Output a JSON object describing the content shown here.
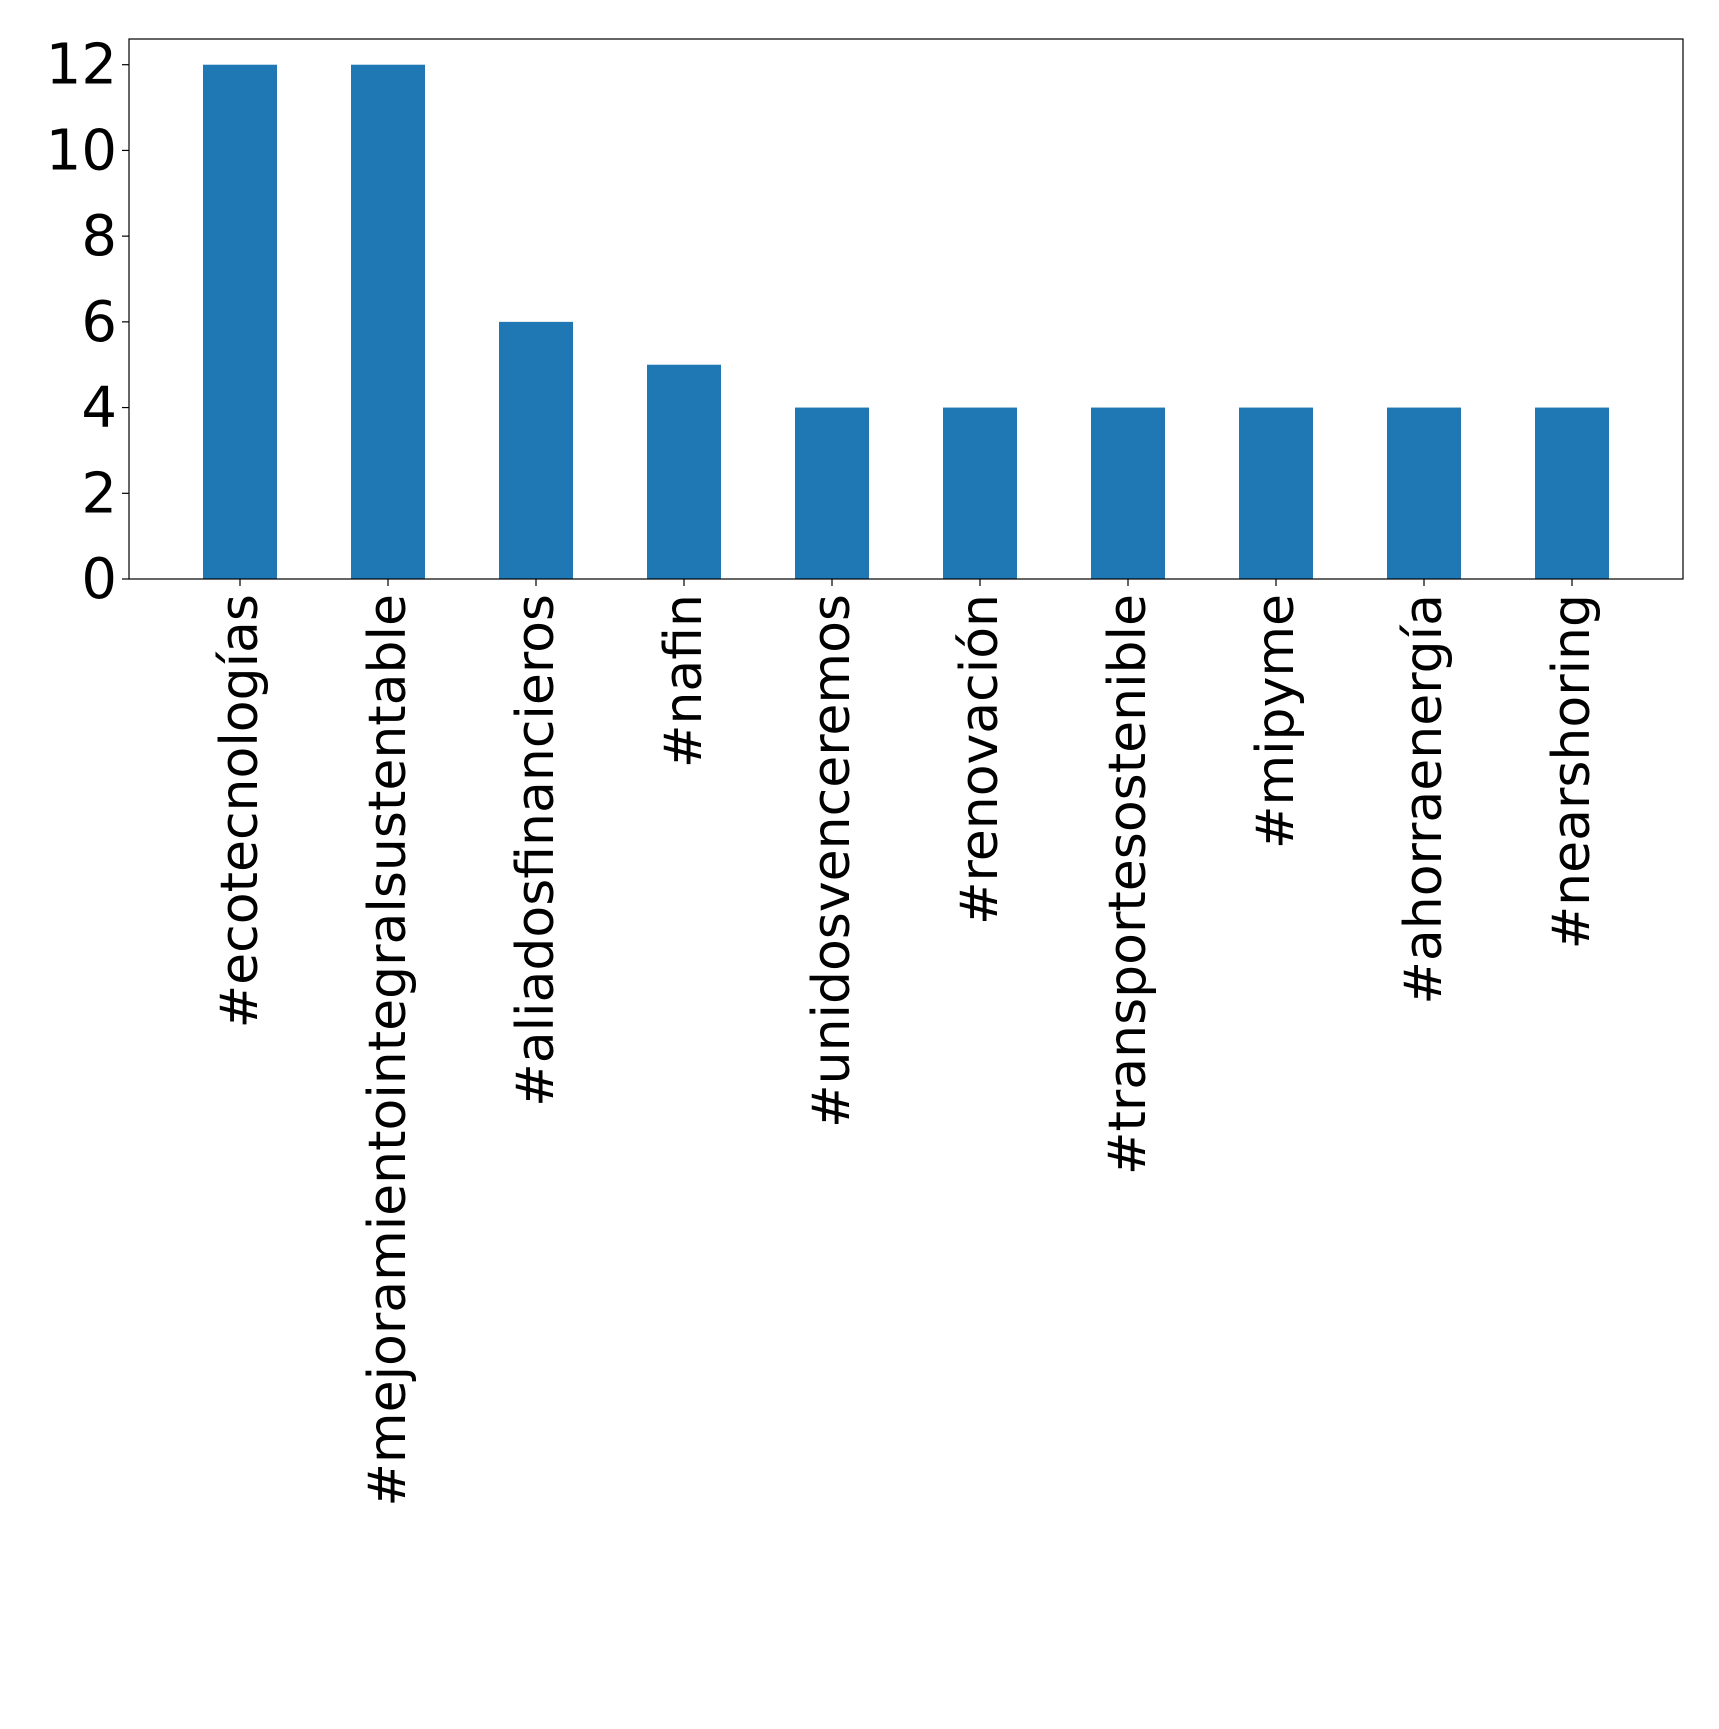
{
  "chart_data": {
    "type": "bar",
    "title": "",
    "xlabel": "",
    "ylabel": "",
    "categories": [
      "#ecotecnologías",
      "#mejoramientointegralsustentable",
      "#aliadosfinancieros",
      "#nafin",
      "#unidosvenceremos",
      "#renovación",
      "#transportesostenible",
      "#mipyme",
      "#ahorraenergía",
      "#nearshoring"
    ],
    "values": [
      12,
      12,
      6,
      5,
      4,
      4,
      4,
      4,
      4,
      4
    ],
    "ylim": [
      0,
      12.6
    ],
    "yticks": [
      0,
      2,
      4,
      6,
      8,
      10,
      12
    ],
    "grid": false,
    "legend": "none",
    "bar_color": "#1f77b4"
  }
}
